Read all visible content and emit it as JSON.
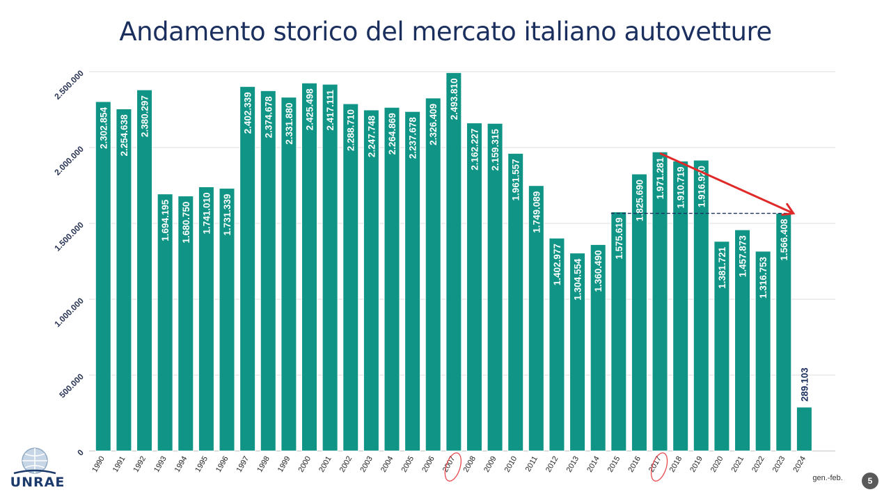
{
  "title": "Andamento storico del mercato italiano autovetture",
  "chart_data": {
    "type": "bar",
    "title": "Andamento storico del mercato italiano autovetture",
    "categories": [
      "1990",
      "1991",
      "1992",
      "1993",
      "1994",
      "1995",
      "1996",
      "1997",
      "1998",
      "1999",
      "2000",
      "2001",
      "2002",
      "2003",
      "2004",
      "2005",
      "2006",
      "2007",
      "2008",
      "2009",
      "2010",
      "2011",
      "2012",
      "2013",
      "2014",
      "2015",
      "2016",
      "2017",
      "2018",
      "2019",
      "2020",
      "2021",
      "2022",
      "2023",
      "2024"
    ],
    "values": [
      2302854,
      2254638,
      2380297,
      1694195,
      1680750,
      1741010,
      1731339,
      2402339,
      2374678,
      2331880,
      2425498,
      2417111,
      2288710,
      2247748,
      2264869,
      2237678,
      2326409,
      2493810,
      2162227,
      2159315,
      1961557,
      1749089,
      1402977,
      1304554,
      1360490,
      1575619,
      1825690,
      1971281,
      1910719,
      1916920,
      1381721,
      1457873,
      1316753,
      1566408,
      289103
    ],
    "value_labels": [
      "2.302.854",
      "2.254.638",
      "2.380.297",
      "1.694.195",
      "1.680.750",
      "1.741.010",
      "1.731.339",
      "2.402.339",
      "2.374.678",
      "2.331.880",
      "2.425.498",
      "2.417.111",
      "2.288.710",
      "2.247.748",
      "2.264.869",
      "2.237.678",
      "2.326.409",
      "2.493.810",
      "2.162.227",
      "2.159.315",
      "1.961.557",
      "1.749.089",
      "1.402.977",
      "1.304.554",
      "1.360.490",
      "1.575.619",
      "1.825.690",
      "1.971.281",
      "1.910.719",
      "1.916.920",
      "1.381.721",
      "1.457.873",
      "1.316.753",
      "1.566.408",
      "289.103"
    ],
    "ylim": [
      0,
      2500000
    ],
    "yticks": [
      0,
      500000,
      1000000,
      1500000,
      2000000,
      2500000
    ],
    "ytick_labels": [
      "0",
      "500.000",
      "1.000.000",
      "1.500.000",
      "2.000.000",
      "2.500.000"
    ],
    "grid": true,
    "circled_categories": [
      "2007",
      "2017"
    ],
    "reference_line_value": 1566408,
    "trend_arrow": {
      "from": "2017",
      "to": "2023"
    },
    "note_2024": "gen.-feb.",
    "colors": {
      "bar": "#0f9486",
      "bar_edge": "#ffffff",
      "title": "#1b2f5e",
      "arrow": "#e02a2a",
      "dash": "#1b2f5e",
      "circle": "#e8474c"
    }
  },
  "logo_text": "UNRAE",
  "page_number": "5"
}
